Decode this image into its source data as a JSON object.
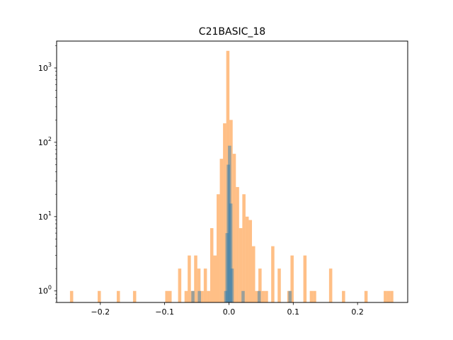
{
  "chart_data": {
    "type": "bar",
    "title": "C21BASIC_18",
    "xlabel": "",
    "ylabel": "",
    "xlim": [
      -0.268,
      0.278
    ],
    "ylim": [
      0.7,
      2300
    ],
    "y_scale": "log",
    "grid": false,
    "legend": "none",
    "x_ticks": [
      {
        "value": -0.2,
        "label": "−0.2"
      },
      {
        "value": -0.1,
        "label": "−0.1"
      },
      {
        "value": 0.0,
        "label": "0.0"
      },
      {
        "value": 0.1,
        "label": "0.1"
      },
      {
        "value": 0.2,
        "label": "0.2"
      }
    ],
    "y_ticks": [
      {
        "value": 1,
        "base": "10",
        "exp": "0"
      },
      {
        "value": 10,
        "base": "10",
        "exp": "1"
      },
      {
        "value": 100,
        "base": "10",
        "exp": "2"
      },
      {
        "value": 1000,
        "base": "10",
        "exp": "3"
      }
    ],
    "bin_width": 0.005,
    "series": [
      {
        "color": "#ff7f0e",
        "opacity": 0.5,
        "bins": [
          {
            "x": -0.2447,
            "y": 1
          },
          {
            "x": -0.2017,
            "y": 1
          },
          {
            "x": -0.172,
            "y": 1
          },
          {
            "x": -0.1467,
            "y": 1
          },
          {
            "x": -0.0966,
            "y": 1
          },
          {
            "x": -0.0916,
            "y": 1
          },
          {
            "x": -0.0766,
            "y": 2
          },
          {
            "x": -0.0666,
            "y": 1
          },
          {
            "x": -0.0617,
            "y": 3
          },
          {
            "x": -0.0567,
            "y": 1
          },
          {
            "x": -0.0517,
            "y": 3
          },
          {
            "x": -0.0467,
            "y": 2
          },
          {
            "x": -0.0417,
            "y": 1
          },
          {
            "x": -0.0367,
            "y": 2
          },
          {
            "x": -0.0317,
            "y": 1
          },
          {
            "x": -0.0267,
            "y": 7
          },
          {
            "x": -0.0217,
            "y": 3
          },
          {
            "x": -0.0167,
            "y": 20
          },
          {
            "x": -0.0117,
            "y": 60
          },
          {
            "x": -0.0067,
            "y": 180
          },
          {
            "x": -0.0017,
            "y": 1700
          },
          {
            "x": 0.0033,
            "y": 200
          },
          {
            "x": 0.0083,
            "y": 70
          },
          {
            "x": 0.0133,
            "y": 25
          },
          {
            "x": 0.0183,
            "y": 7
          },
          {
            "x": 0.0233,
            "y": 20
          },
          {
            "x": 0.0283,
            "y": 10
          },
          {
            "x": 0.0333,
            "y": 9
          },
          {
            "x": 0.0383,
            "y": 4
          },
          {
            "x": 0.0433,
            "y": 1
          },
          {
            "x": 0.0483,
            "y": 2
          },
          {
            "x": 0.0533,
            "y": 1
          },
          {
            "x": 0.0583,
            "y": 1
          },
          {
            "x": 0.0682,
            "y": 4
          },
          {
            "x": 0.0782,
            "y": 2
          },
          {
            "x": 0.0932,
            "y": 1
          },
          {
            "x": 0.0982,
            "y": 3
          },
          {
            "x": 0.1182,
            "y": 3
          },
          {
            "x": 0.1282,
            "y": 1
          },
          {
            "x": 0.1332,
            "y": 1
          },
          {
            "x": 0.1582,
            "y": 2
          },
          {
            "x": 0.1782,
            "y": 1
          },
          {
            "x": 0.2132,
            "y": 1
          },
          {
            "x": 0.2432,
            "y": 1
          },
          {
            "x": 0.2482,
            "y": 1
          },
          {
            "x": 0.2532,
            "y": 1
          }
        ]
      },
      {
        "color": "#1f77b4",
        "opacity": 0.45,
        "bins": [
          {
            "x": -0.056,
            "y": 1
          },
          {
            "x": -0.046,
            "y": 1
          },
          {
            "x": -0.005,
            "y": 1
          },
          {
            "x": -0.003,
            "y": 6
          },
          {
            "x": -0.001,
            "y": 50
          },
          {
            "x": 0.001,
            "y": 90
          },
          {
            "x": 0.003,
            "y": 15
          },
          {
            "x": 0.005,
            "y": 2
          },
          {
            "x": 0.022,
            "y": 1
          },
          {
            "x": 0.047,
            "y": 1
          },
          {
            "x": 0.095,
            "y": 1
          }
        ]
      }
    ]
  }
}
